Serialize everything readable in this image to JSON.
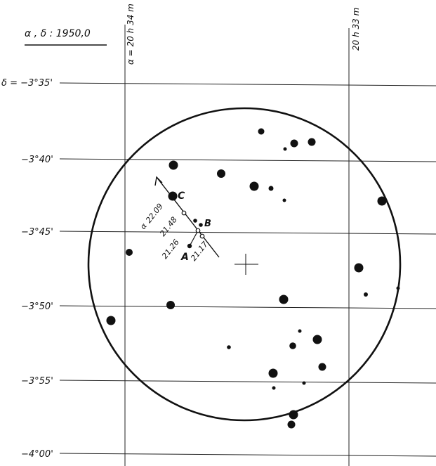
{
  "title": "α , δ :  1950,0",
  "ra_labels": [
    "α = 20 h 34 m",
    "20 h 33 m"
  ],
  "dec_labels": [
    "δ = −3°35'",
    "−3°40'",
    "−3°45'",
    "−3°50'",
    "−3°55'",
    "−4°00'"
  ],
  "point_labels": {
    "A": "A",
    "B": "B",
    "C": "C"
  },
  "epoch_labels": [
    "22.09",
    "21.48",
    "21.26",
    "21.17"
  ],
  "motion_symbol": "α"
}
